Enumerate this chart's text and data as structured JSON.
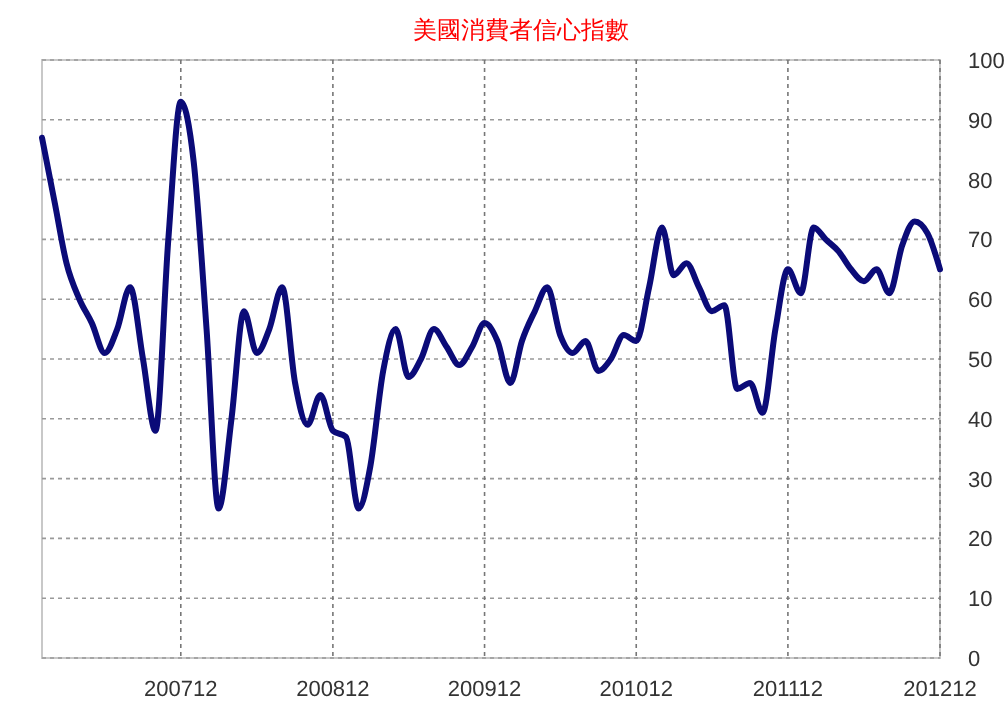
{
  "chart_data": {
    "type": "line",
    "title": "美國消費者信心指數",
    "x": [
      "2007-01",
      "2007-02",
      "2007-03",
      "2007-04",
      "2007-05",
      "2007-06",
      "2007-07",
      "2007-08",
      "2007-09",
      "2007-10",
      "2007-11",
      "2007-12",
      "2008-01",
      "2008-02",
      "2008-03",
      "2008-04",
      "2008-05",
      "2008-06",
      "2008-07",
      "2008-08",
      "2008-09",
      "2008-10",
      "2008-11",
      "2008-12",
      "2009-01",
      "2009-02",
      "2009-03",
      "2009-04",
      "2009-05",
      "2009-06",
      "2009-07",
      "2009-08",
      "2009-09",
      "2009-10",
      "2009-11",
      "2009-12",
      "2010-01",
      "2010-02",
      "2010-03",
      "2010-04",
      "2010-05",
      "2010-06",
      "2010-07",
      "2010-08",
      "2010-09",
      "2010-10",
      "2010-11",
      "2010-12",
      "2011-01",
      "2011-02",
      "2011-03",
      "2011-04",
      "2011-05",
      "2011-06",
      "2011-07",
      "2011-08",
      "2011-09",
      "2011-10",
      "2011-11",
      "2011-12",
      "2012-01",
      "2012-02",
      "2012-03",
      "2012-04",
      "2012-05",
      "2012-06",
      "2012-07",
      "2012-08",
      "2012-09",
      "2012-10",
      "2012-11",
      "2012-12"
    ],
    "series": [
      {
        "color": "#0b0b78",
        "values": [
          87,
          76,
          66,
          60,
          56,
          51,
          55,
          62,
          50,
          38,
          70,
          93,
          83,
          55,
          25,
          40,
          58,
          51,
          55,
          62,
          46,
          39,
          44,
          38,
          37,
          25,
          32,
          48,
          55,
          47,
          50,
          55,
          52,
          49,
          52,
          56,
          53,
          46,
          53,
          58,
          62,
          54,
          51,
          53,
          48,
          50,
          54,
          53,
          62,
          72,
          64,
          66,
          62,
          58,
          59,
          45,
          46,
          41,
          55,
          65,
          61,
          72,
          70,
          68,
          65,
          63,
          65,
          61,
          69,
          73,
          71,
          65
        ]
      }
    ],
    "xlim": [
      "2007-01",
      "2012-12"
    ],
    "xticks": [
      {
        "value": "2007-12",
        "label": "200712"
      },
      {
        "value": "2008-12",
        "label": "200812"
      },
      {
        "value": "2009-12",
        "label": "200912"
      },
      {
        "value": "2010-12",
        "label": "201012"
      },
      {
        "value": "2011-12",
        "label": "201112"
      },
      {
        "value": "2012-12",
        "label": "201212"
      }
    ],
    "ylim": [
      0,
      100
    ],
    "yticks": [
      0,
      10,
      20,
      30,
      40,
      50,
      60,
      70,
      80,
      90,
      100
    ],
    "grid": true,
    "marker": "none",
    "line_style": "solid"
  }
}
